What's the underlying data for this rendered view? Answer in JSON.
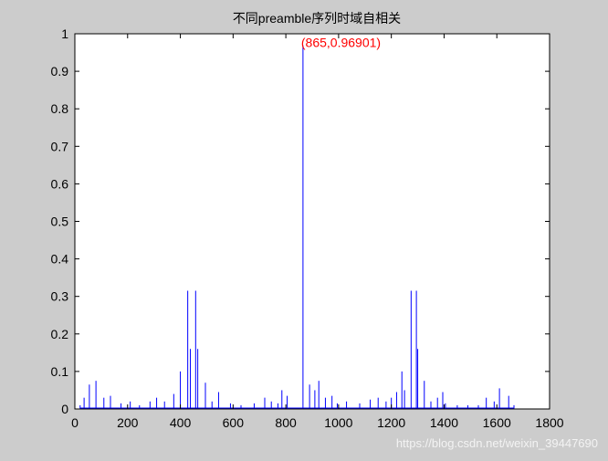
{
  "chart_data": {
    "type": "line",
    "title": "不同preamble序列时域自相关",
    "xlabel": "",
    "ylabel": "",
    "xlim": [
      0,
      1800
    ],
    "ylim": [
      0,
      1
    ],
    "xticks": [
      0,
      200,
      400,
      600,
      800,
      1000,
      1200,
      1400,
      1600,
      1800
    ],
    "yticks": [
      0,
      0.1,
      0.2,
      0.3,
      0.4,
      0.5,
      0.6,
      0.7,
      0.8,
      0.9,
      1
    ],
    "grid": false,
    "legend": "none",
    "line_color": "#0000ff",
    "annotation": {
      "text": "(865,0.96901)",
      "x": 865,
      "y": 0.96901,
      "color": "#ff0000"
    },
    "series": [
      {
        "x": [
          20,
          35,
          55,
          80,
          110,
          135,
          175,
          210,
          245,
          285,
          310,
          340,
          375,
          400,
          428,
          438,
          458,
          466,
          495,
          520,
          545,
          590,
          630,
          680,
          720,
          745,
          770,
          785,
          805,
          865,
          890,
          910,
          925,
          950,
          975,
          995,
          1030,
          1080,
          1120,
          1150,
          1180,
          1200,
          1220,
          1240,
          1250,
          1275,
          1295,
          1300,
          1325,
          1350,
          1375,
          1395,
          1405,
          1450,
          1490,
          1530,
          1560,
          1590,
          1610,
          1645,
          1665
        ],
        "y": [
          0.01,
          0.03,
          0.065,
          0.075,
          0.03,
          0.035,
          0.015,
          0.02,
          0.01,
          0.02,
          0.03,
          0.02,
          0.04,
          0.1,
          0.315,
          0.16,
          0.315,
          0.16,
          0.07,
          0.02,
          0.045,
          0.015,
          0.01,
          0.015,
          0.03,
          0.02,
          0.015,
          0.05,
          0.035,
          0.96901,
          0.065,
          0.05,
          0.075,
          0.03,
          0.035,
          0.015,
          0.02,
          0.015,
          0.025,
          0.03,
          0.02,
          0.03,
          0.045,
          0.1,
          0.05,
          0.315,
          0.315,
          0.16,
          0.075,
          0.02,
          0.03,
          0.045,
          0.015,
          0.01,
          0.01,
          0.01,
          0.03,
          0.02,
          0.055,
          0.035,
          0.01
        ]
      }
    ]
  },
  "watermark": "https://blog.csdn.net/weixin_39447690"
}
